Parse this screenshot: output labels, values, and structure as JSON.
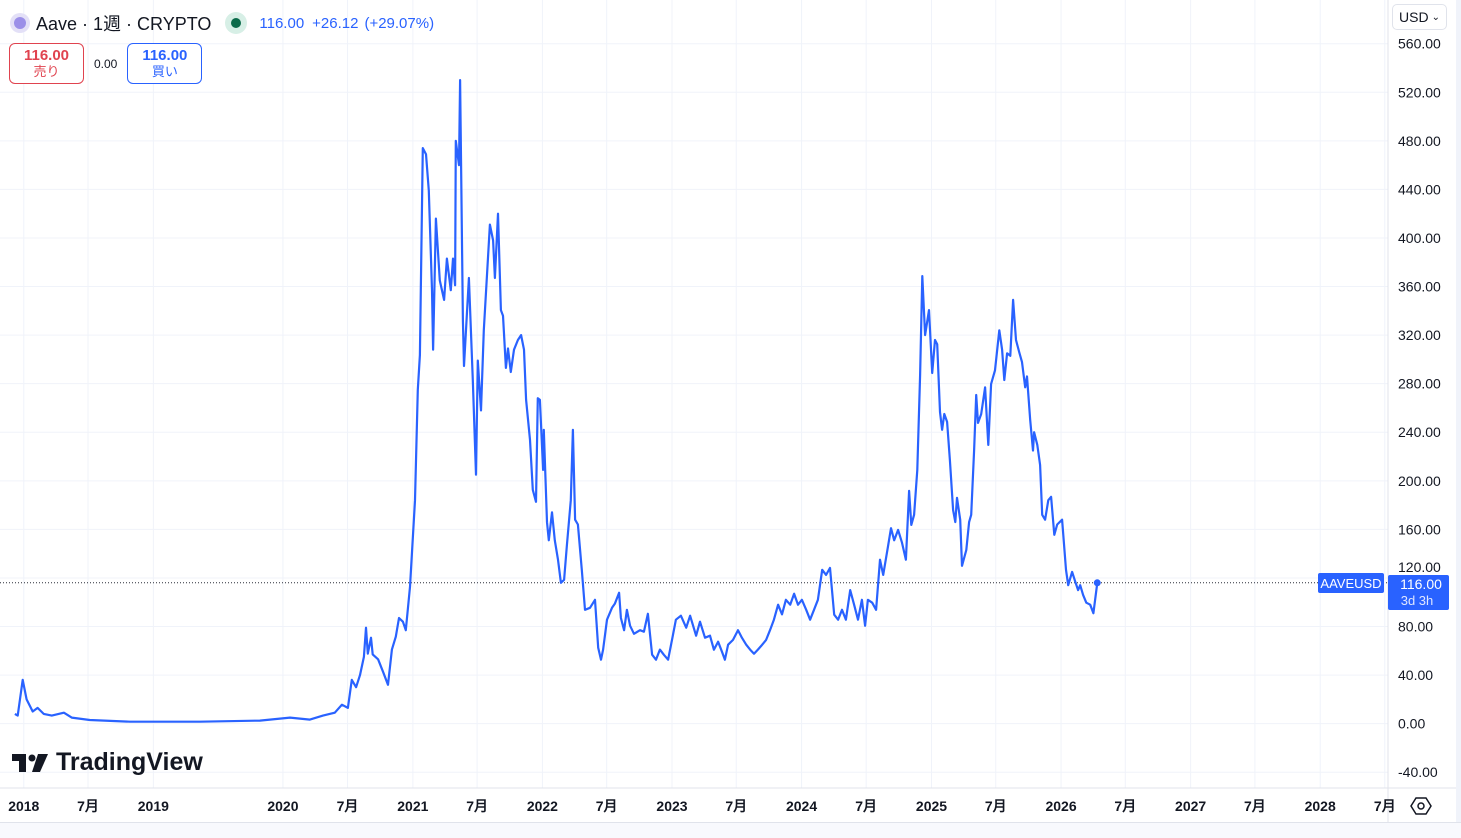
{
  "header": {
    "symbol_icon": "aave-logo-icon",
    "title": "Aave · 1週 · CRYPTO",
    "market_status_icon": "market-open-dot-icon",
    "last_price": "116.00",
    "change": "+26.12",
    "change_pct": "(+29.07%)"
  },
  "trade": {
    "sell_price": "116.00",
    "sell_label": "売り",
    "spread": "0.00",
    "buy_price": "116.00",
    "buy_label": "買い"
  },
  "currency_selector": {
    "value": "USD"
  },
  "price_label": {
    "symbol": "AAVEUSD",
    "price": "116.00",
    "countdown": "3d 3h"
  },
  "branding": {
    "logo_text": "TradingView"
  },
  "colors": {
    "line": "#2962ff",
    "grid": "#f0f3fa",
    "sell": "#e0434f",
    "buy": "#2962ff"
  },
  "chart_data": {
    "type": "line",
    "symbol": "AAVEUSD",
    "interval": "1週",
    "x_range": [
      "2017-10-26",
      "2028-07-10"
    ],
    "ylim": [
      -53,
      596
    ],
    "grid": true,
    "y_ticks": [
      "-40.00",
      "0.00",
      "40.00",
      "80.00",
      "120.00",
      "160.00",
      "200.00",
      "240.00",
      "280.00",
      "320.00",
      "360.00",
      "400.00",
      "440.00",
      "480.00",
      "520.00",
      "560.00"
    ],
    "x_ticks": [
      {
        "label": "2018",
        "date": "2018-01-01"
      },
      {
        "label": "7月",
        "date": "2018-07-01"
      },
      {
        "label": "2019",
        "date": "2019-01-01"
      },
      {
        "label": "2020",
        "date": "2020-01-01"
      },
      {
        "label": "7月",
        "date": "2020-07-01"
      },
      {
        "label": "2021",
        "date": "2021-01-01"
      },
      {
        "label": "7月",
        "date": "2021-07-01"
      },
      {
        "label": "2022",
        "date": "2022-01-01"
      },
      {
        "label": "7月",
        "date": "2022-07-01"
      },
      {
        "label": "2023",
        "date": "2023-01-01"
      },
      {
        "label": "7月",
        "date": "2023-07-01"
      },
      {
        "label": "2024",
        "date": "2024-01-01"
      },
      {
        "label": "7月",
        "date": "2024-07-01"
      },
      {
        "label": "2025",
        "date": "2025-01-01"
      },
      {
        "label": "7月",
        "date": "2025-07-01"
      },
      {
        "label": "2026",
        "date": "2026-01-01"
      },
      {
        "label": "7月",
        "date": "2026-07-01"
      },
      {
        "label": "2027",
        "date": "2027-01-01"
      },
      {
        "label": "7月",
        "date": "2027-07-01"
      },
      {
        "label": "2028",
        "date": "2028-01-01"
      },
      {
        "label": "7月",
        "date": "2028-07-01"
      }
    ],
    "last_value": 116.0,
    "points": [
      [
        "2017-12-07",
        8
      ],
      [
        "2017-12-15",
        6.6
      ],
      [
        "2017-12-29",
        36
      ],
      [
        "2018-01-09",
        20
      ],
      [
        "2018-01-26",
        10
      ],
      [
        "2018-02-09",
        13
      ],
      [
        "2018-02-26",
        8
      ],
      [
        "2018-03-21",
        6.6
      ],
      [
        "2018-04-24",
        9
      ],
      [
        "2018-05-16",
        5
      ],
      [
        "2018-07-06",
        3
      ],
      [
        "2018-10-27",
        1.6
      ],
      [
        "2019-05-12",
        1.6
      ],
      [
        "2019-10-28",
        2.5
      ],
      [
        "2020-01-21",
        5
      ],
      [
        "2020-03-17",
        3.3
      ],
      [
        "2020-04-23",
        6.6
      ],
      [
        "2020-05-26",
        9
      ],
      [
        "2020-06-15",
        15.6
      ],
      [
        "2020-07-02",
        13
      ],
      [
        "2020-07-13",
        36
      ],
      [
        "2020-07-25",
        30
      ],
      [
        "2020-08-05",
        40
      ],
      [
        "2020-08-16",
        55
      ],
      [
        "2020-08-22",
        79
      ],
      [
        "2020-08-27",
        57.6
      ],
      [
        "2020-09-05",
        70.8
      ],
      [
        "2020-09-10",
        57
      ],
      [
        "2020-09-25",
        53
      ],
      [
        "2020-10-09",
        42.8
      ],
      [
        "2020-10-23",
        32
      ],
      [
        "2020-11-03",
        61
      ],
      [
        "2020-11-14",
        71.6
      ],
      [
        "2020-11-23",
        87
      ],
      [
        "2020-12-04",
        84
      ],
      [
        "2020-12-12",
        77
      ],
      [
        "2020-12-24",
        112.7
      ],
      [
        "2021-01-07",
        184
      ],
      [
        "2021-01-15",
        275
      ],
      [
        "2021-01-21",
        303.6
      ],
      [
        "2021-01-29",
        474
      ],
      [
        "2021-02-07",
        469
      ],
      [
        "2021-02-15",
        439
      ],
      [
        "2021-02-24",
        357
      ],
      [
        "2021-02-27",
        308
      ],
      [
        "2021-03-07",
        416
      ],
      [
        "2021-03-18",
        365
      ],
      [
        "2021-03-30",
        349
      ],
      [
        "2021-04-07",
        383
      ],
      [
        "2021-04-18",
        357
      ],
      [
        "2021-04-24",
        383
      ],
      [
        "2021-04-30",
        361
      ],
      [
        "2021-05-02",
        480
      ],
      [
        "2021-05-11",
        460
      ],
      [
        "2021-05-14",
        530
      ],
      [
        "2021-05-22",
        332
      ],
      [
        "2021-05-25",
        294.6
      ],
      [
        "2021-06-08",
        367
      ],
      [
        "2021-06-19",
        283
      ],
      [
        "2021-06-28",
        205
      ],
      [
        "2021-07-03",
        299
      ],
      [
        "2021-07-12",
        258
      ],
      [
        "2021-07-20",
        324
      ],
      [
        "2021-08-06",
        411
      ],
      [
        "2021-08-15",
        398
      ],
      [
        "2021-08-20",
        367
      ],
      [
        "2021-08-29",
        420
      ],
      [
        "2021-09-06",
        340.6
      ],
      [
        "2021-09-12",
        336
      ],
      [
        "2021-09-20",
        293
      ],
      [
        "2021-09-26",
        309
      ],
      [
        "2021-10-04",
        289.6
      ],
      [
        "2021-10-13",
        308
      ],
      [
        "2021-10-24",
        316
      ],
      [
        "2021-11-02",
        320
      ],
      [
        "2021-11-10",
        308
      ],
      [
        "2021-11-16",
        266.6
      ],
      [
        "2021-11-27",
        233.7
      ],
      [
        "2021-12-05",
        192.5
      ],
      [
        "2021-12-14",
        182.7
      ],
      [
        "2021-12-19",
        268
      ],
      [
        "2021-12-25",
        266.6
      ],
      [
        "2022-01-03",
        209
      ],
      [
        "2022-01-05",
        242
      ],
      [
        "2022-01-14",
        166
      ],
      [
        "2022-01-19",
        151
      ],
      [
        "2022-01-28",
        174
      ],
      [
        "2022-02-05",
        151
      ],
      [
        "2022-02-14",
        135
      ],
      [
        "2022-02-22",
        116
      ],
      [
        "2022-03-03",
        118.5
      ],
      [
        "2022-03-11",
        147
      ],
      [
        "2022-03-22",
        184
      ],
      [
        "2022-03-28",
        242
      ],
      [
        "2022-04-03",
        168
      ],
      [
        "2022-04-11",
        164
      ],
      [
        "2022-04-22",
        126.7
      ],
      [
        "2022-05-01",
        93.8
      ],
      [
        "2022-05-15",
        95.4
      ],
      [
        "2022-05-29",
        102
      ],
      [
        "2022-06-07",
        62.5
      ],
      [
        "2022-06-15",
        52.7
      ],
      [
        "2022-06-21",
        61
      ],
      [
        "2022-07-02",
        85.6
      ],
      [
        "2022-07-16",
        95.4
      ],
      [
        "2022-07-24",
        98.7
      ],
      [
        "2022-08-05",
        107.8
      ],
      [
        "2022-08-10",
        87
      ],
      [
        "2022-08-19",
        77
      ],
      [
        "2022-08-27",
        93.8
      ],
      [
        "2022-09-05",
        80.6
      ],
      [
        "2022-09-16",
        74
      ],
      [
        "2022-10-03",
        77
      ],
      [
        "2022-10-14",
        75.7
      ],
      [
        "2022-10-25",
        90.5
      ],
      [
        "2022-11-06",
        56.8
      ],
      [
        "2022-11-17",
        52.7
      ],
      [
        "2022-11-28",
        61
      ],
      [
        "2022-12-09",
        56.8
      ],
      [
        "2022-12-21",
        52.7
      ],
      [
        "2023-01-01",
        69
      ],
      [
        "2023-01-12",
        85.6
      ],
      [
        "2023-01-26",
        88.9
      ],
      [
        "2023-02-10",
        79
      ],
      [
        "2023-02-21",
        88.9
      ],
      [
        "2023-03-10",
        72.4
      ],
      [
        "2023-03-21",
        84
      ],
      [
        "2023-04-04",
        70.8
      ],
      [
        "2023-04-18",
        72.4
      ],
      [
        "2023-04-29",
        60.9
      ],
      [
        "2023-05-11",
        67.5
      ],
      [
        "2023-05-22",
        59.2
      ],
      [
        "2023-05-30",
        52.7
      ],
      [
        "2023-06-08",
        65
      ],
      [
        "2023-06-22",
        69
      ],
      [
        "2023-07-06",
        77
      ],
      [
        "2023-07-17",
        70.8
      ],
      [
        "2023-07-29",
        65
      ],
      [
        "2023-08-09",
        61
      ],
      [
        "2023-08-20",
        57.6
      ],
      [
        "2023-08-31",
        61
      ],
      [
        "2023-09-12",
        65
      ],
      [
        "2023-09-23",
        69
      ],
      [
        "2023-10-04",
        77
      ],
      [
        "2023-10-15",
        85.6
      ],
      [
        "2023-10-27",
        98
      ],
      [
        "2023-11-07",
        90
      ],
      [
        "2023-11-18",
        102
      ],
      [
        "2023-11-30",
        98
      ],
      [
        "2023-12-11",
        107
      ],
      [
        "2023-12-22",
        98
      ],
      [
        "2024-01-02",
        102
      ],
      [
        "2024-01-14",
        93.8
      ],
      [
        "2024-01-25",
        85.6
      ],
      [
        "2024-02-05",
        93.8
      ],
      [
        "2024-02-16",
        102
      ],
      [
        "2024-02-28",
        126.7
      ],
      [
        "2024-03-10",
        122.5
      ],
      [
        "2024-03-21",
        128.3
      ],
      [
        "2024-04-02",
        89.7
      ],
      [
        "2024-04-13",
        85.6
      ],
      [
        "2024-04-24",
        93.8
      ],
      [
        "2024-05-05",
        85.6
      ],
      [
        "2024-05-17",
        110
      ],
      [
        "2024-05-28",
        98
      ],
      [
        "2024-06-08",
        85.6
      ],
      [
        "2024-06-19",
        102
      ],
      [
        "2024-06-28",
        80.6
      ],
      [
        "2024-07-06",
        102
      ],
      [
        "2024-07-18",
        99.6
      ],
      [
        "2024-07-29",
        93.8
      ],
      [
        "2024-08-09",
        135
      ],
      [
        "2024-08-18",
        122.5
      ],
      [
        "2024-09-01",
        147
      ],
      [
        "2024-09-09",
        161
      ],
      [
        "2024-09-18",
        151
      ],
      [
        "2024-09-29",
        159.6
      ],
      [
        "2024-10-10",
        149
      ],
      [
        "2024-10-21",
        135
      ],
      [
        "2024-10-30",
        191.7
      ],
      [
        "2024-11-05",
        163.7
      ],
      [
        "2024-11-13",
        172
      ],
      [
        "2024-11-22",
        209
      ],
      [
        "2024-11-30",
        287
      ],
      [
        "2024-12-06",
        368.6
      ],
      [
        "2024-12-14",
        320
      ],
      [
        "2024-12-25",
        340.6
      ],
      [
        "2025-01-03",
        288.8
      ],
      [
        "2025-01-11",
        316
      ],
      [
        "2025-01-17",
        312.5
      ],
      [
        "2025-01-25",
        256.7
      ],
      [
        "2025-01-31",
        242
      ],
      [
        "2025-02-06",
        255
      ],
      [
        "2025-02-14",
        248.5
      ],
      [
        "2025-02-22",
        217
      ],
      [
        "2025-03-03",
        176
      ],
      [
        "2025-03-09",
        166
      ],
      [
        "2025-03-14",
        186
      ],
      [
        "2025-03-23",
        168
      ],
      [
        "2025-03-28",
        130
      ],
      [
        "2025-04-09",
        143
      ],
      [
        "2025-04-17",
        166
      ],
      [
        "2025-04-23",
        172
      ],
      [
        "2025-05-01",
        225
      ],
      [
        "2025-05-07",
        270.7
      ],
      [
        "2025-05-12",
        247.7
      ],
      [
        "2025-05-21",
        255
      ],
      [
        "2025-06-01",
        277
      ],
      [
        "2025-06-10",
        229.6
      ],
      [
        "2025-06-18",
        279.7
      ],
      [
        "2025-06-29",
        291
      ],
      [
        "2025-07-11",
        324
      ],
      [
        "2025-07-19",
        308
      ],
      [
        "2025-07-25",
        283
      ],
      [
        "2025-08-02",
        305
      ],
      [
        "2025-08-11",
        303
      ],
      [
        "2025-08-19",
        349
      ],
      [
        "2025-08-27",
        316
      ],
      [
        "2025-09-05",
        306
      ],
      [
        "2025-09-13",
        297.8
      ],
      [
        "2025-09-22",
        277
      ],
      [
        "2025-09-27",
        286
      ],
      [
        "2025-10-06",
        250
      ],
      [
        "2025-10-14",
        225
      ],
      [
        "2025-10-17",
        240
      ],
      [
        "2025-10-26",
        229.6
      ],
      [
        "2025-11-03",
        213
      ],
      [
        "2025-11-09",
        172
      ],
      [
        "2025-11-17",
        168
      ],
      [
        "2025-11-26",
        184
      ],
      [
        "2025-12-04",
        186.8
      ],
      [
        "2025-12-13",
        155.5
      ],
      [
        "2025-12-21",
        164
      ],
      [
        "2026-01-04",
        168
      ],
      [
        "2026-01-15",
        126.7
      ],
      [
        "2026-01-21",
        114
      ],
      [
        "2026-02-01",
        125
      ],
      [
        "2026-02-10",
        116.8
      ],
      [
        "2026-02-18",
        110
      ],
      [
        "2026-02-24",
        114
      ],
      [
        "2026-03-04",
        106
      ],
      [
        "2026-03-13",
        99.6
      ],
      [
        "2026-03-24",
        98
      ],
      [
        "2026-04-02",
        91
      ],
      [
        "2026-04-13",
        116
      ]
    ]
  }
}
